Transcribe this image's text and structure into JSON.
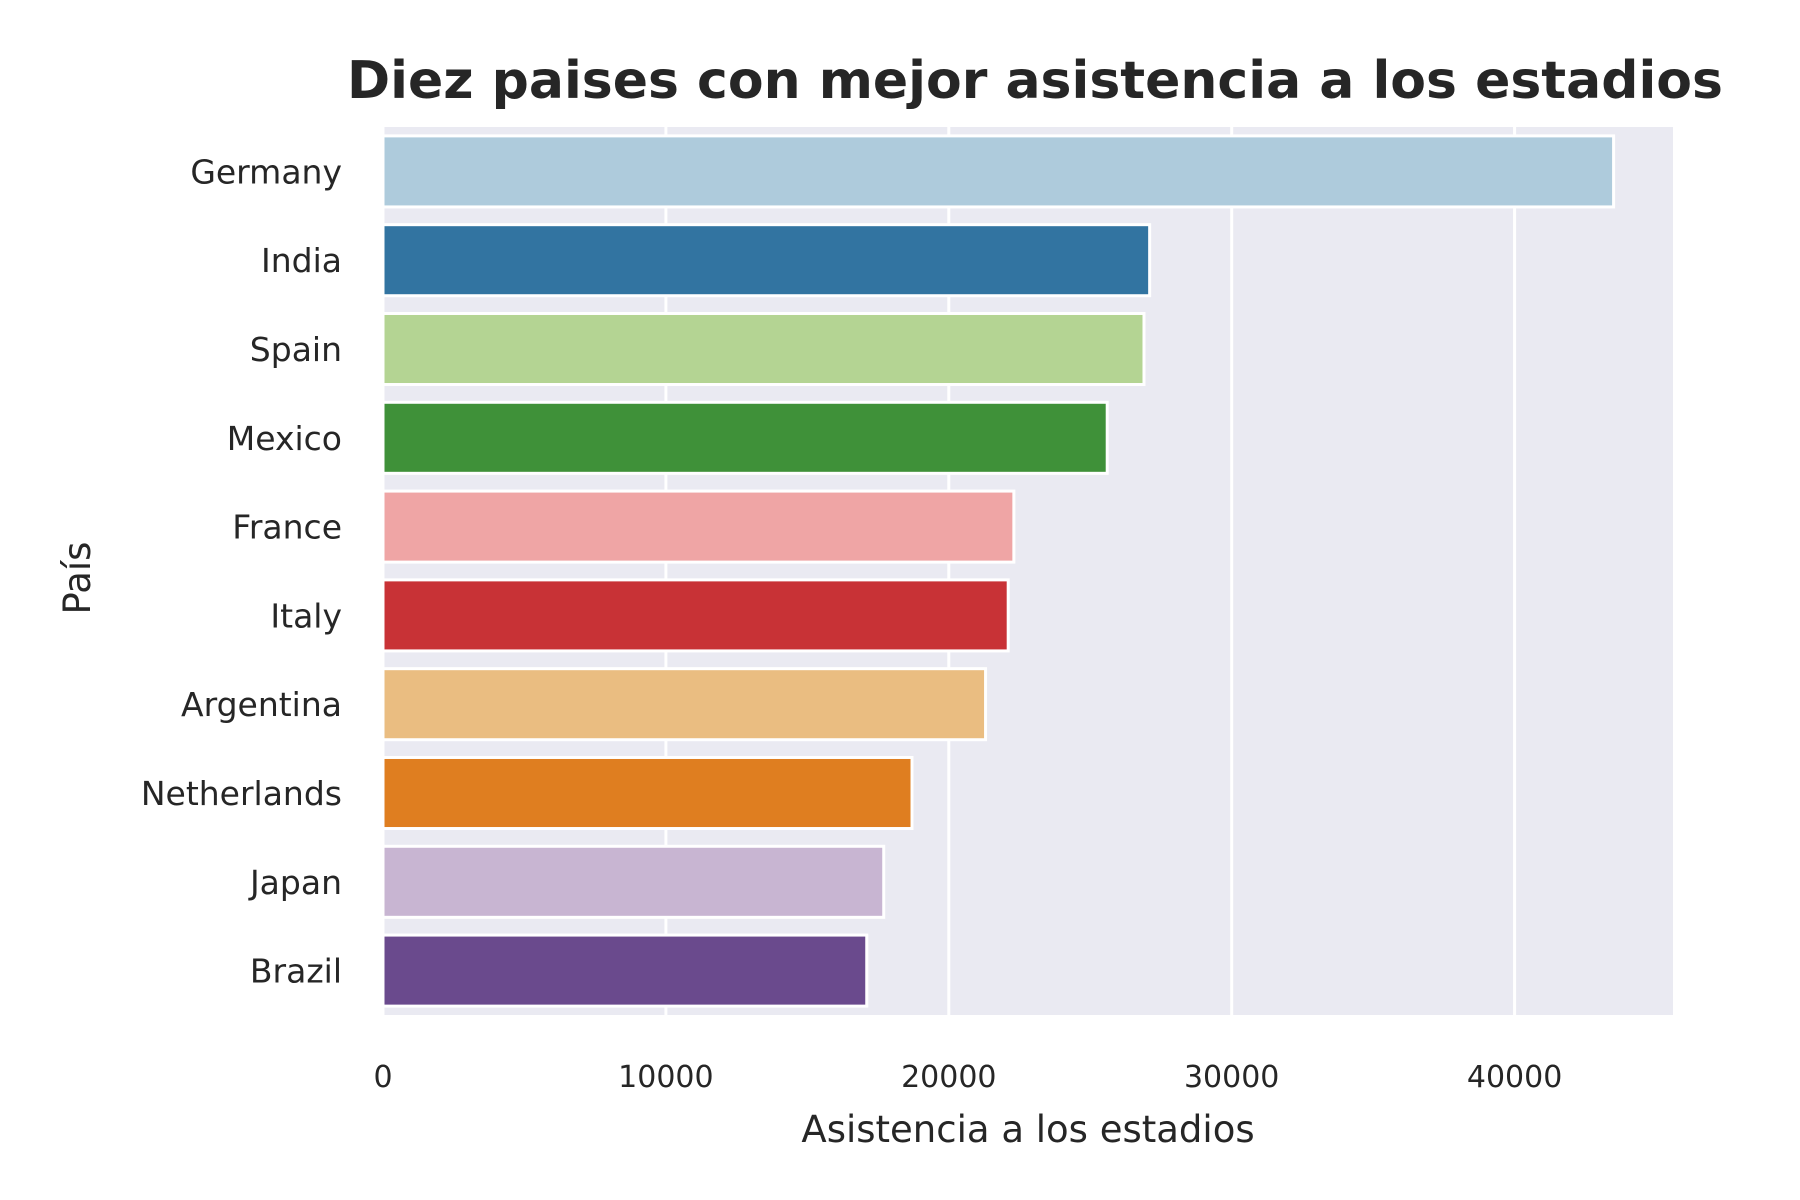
{
  "chart_data": {
    "type": "bar",
    "orientation": "horizontal",
    "title": "Diez paises con mejor asistencia a los estadios",
    "xlabel": "Asistencia a los estadios",
    "ylabel": "País",
    "xlim": [
      0,
      45600
    ],
    "xticks": [
      0,
      10000,
      20000,
      30000,
      40000
    ],
    "xtick_labels": [
      "0",
      "10000",
      "20000",
      "30000",
      "40000"
    ],
    "grid": true,
    "background": "#eaeaf2",
    "categories": [
      "Germany",
      "India",
      "Spain",
      "Mexico",
      "France",
      "Italy",
      "Argentina",
      "Netherlands",
      "Japan",
      "Brazil"
    ],
    "values": [
      43500,
      27100,
      26900,
      25600,
      22300,
      22100,
      21300,
      18700,
      17700,
      17100
    ],
    "colors": [
      "#aecbdc",
      "#3274a1",
      "#b4d493",
      "#3f9139",
      "#efa5a5",
      "#c83236",
      "#eabd81",
      "#df7e20",
      "#c8b5d2",
      "#6a4a8d"
    ]
  }
}
